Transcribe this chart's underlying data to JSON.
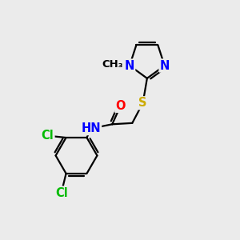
{
  "bg_color": "#ebebeb",
  "bond_color": "#000000",
  "bond_width": 1.6,
  "atom_colors": {
    "N": "#0000ff",
    "O": "#ff0000",
    "S": "#ccaa00",
    "Cl": "#00bb00",
    "C": "#000000",
    "H": "#555555"
  },
  "font_size_atom": 10.5,
  "font_size_small": 9.0,
  "font_size_methyl": 9.5
}
